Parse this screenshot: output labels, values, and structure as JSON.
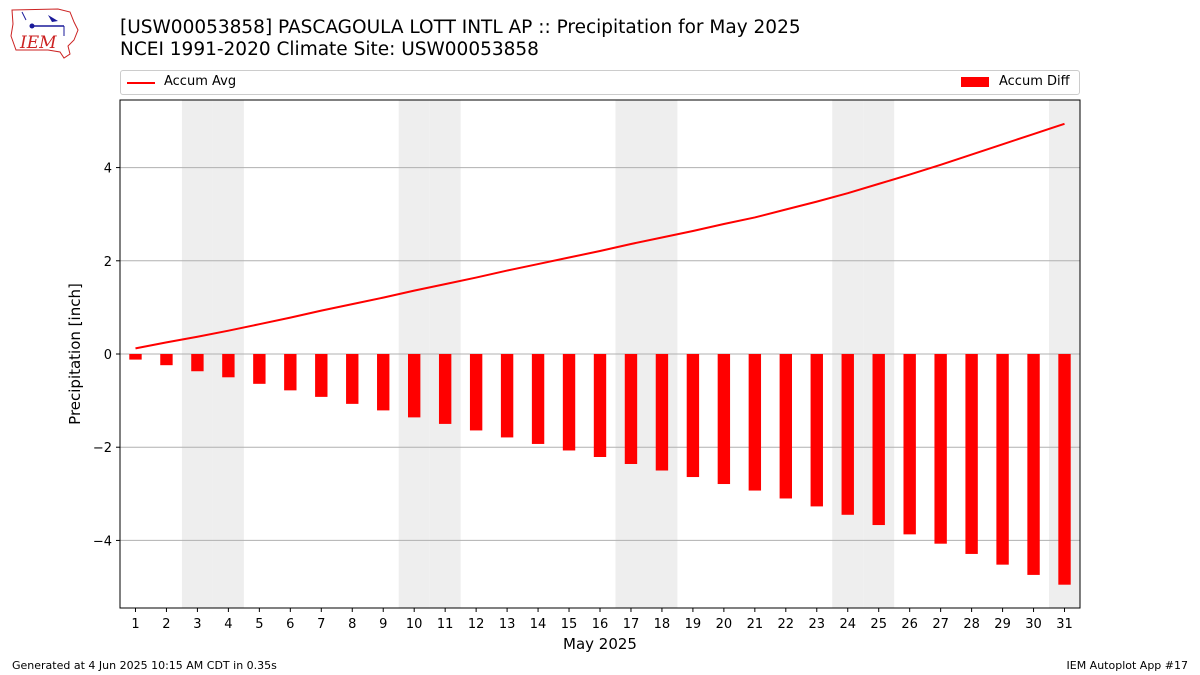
{
  "header": {
    "title_line1": "[USW00053858] PASCAGOULA LOTT INTL AP :: Precipitation for May 2025",
    "title_line2": "NCEI 1991-2020 Climate Site: USW00053858",
    "logo_text": "IEM"
  },
  "legend": {
    "line_label": "Accum Avg",
    "bar_label": "Accum Diff",
    "placement": "top, spanning axes"
  },
  "footer": {
    "left": "Generated at 4 Jun 2025 10:15 AM CDT in 0.35s",
    "right": "IEM Autoplot App #17"
  },
  "colors": {
    "bar": "#ff0000",
    "line": "#ff0000",
    "weekend_shade": "#eeeeee",
    "grid": "#b0b0b0"
  },
  "chart_data": {
    "type": "bar",
    "xlabel": "May 2025",
    "ylabel": "Precipitation [inch]",
    "categories": [
      "1",
      "2",
      "3",
      "4",
      "5",
      "6",
      "7",
      "8",
      "9",
      "10",
      "11",
      "12",
      "13",
      "14",
      "15",
      "16",
      "17",
      "18",
      "19",
      "20",
      "21",
      "22",
      "23",
      "24",
      "25",
      "26",
      "27",
      "28",
      "29",
      "30",
      "31"
    ],
    "ylim": [
      -5.45,
      5.45
    ],
    "yticks": [
      -4,
      -2,
      0,
      2,
      4
    ],
    "ytick_labels": [
      "−4",
      "−2",
      "0",
      "2",
      "4"
    ],
    "grid": "horizontal",
    "weekend_days": [
      3,
      4,
      10,
      11,
      17,
      18,
      24,
      25,
      31
    ],
    "series": [
      {
        "name": "Accum Avg",
        "kind": "line",
        "values": [
          0.12,
          0.25,
          0.37,
          0.5,
          0.64,
          0.78,
          0.93,
          1.07,
          1.21,
          1.36,
          1.5,
          1.64,
          1.79,
          1.93,
          2.07,
          2.21,
          2.36,
          2.5,
          2.64,
          2.79,
          2.93,
          3.1,
          3.27,
          3.45,
          3.65,
          3.85,
          4.06,
          4.28,
          4.5,
          4.72,
          4.94
        ]
      },
      {
        "name": "Accum Diff",
        "kind": "bar",
        "values": [
          -0.12,
          -0.24,
          -0.37,
          -0.5,
          -0.64,
          -0.78,
          -0.92,
          -1.07,
          -1.21,
          -1.36,
          -1.5,
          -1.64,
          -1.79,
          -1.93,
          -2.07,
          -2.21,
          -2.36,
          -2.5,
          -2.64,
          -2.79,
          -2.93,
          -3.1,
          -3.27,
          -3.45,
          -3.67,
          -3.87,
          -4.07,
          -4.29,
          -4.52,
          -4.74,
          -4.95
        ]
      }
    ]
  }
}
